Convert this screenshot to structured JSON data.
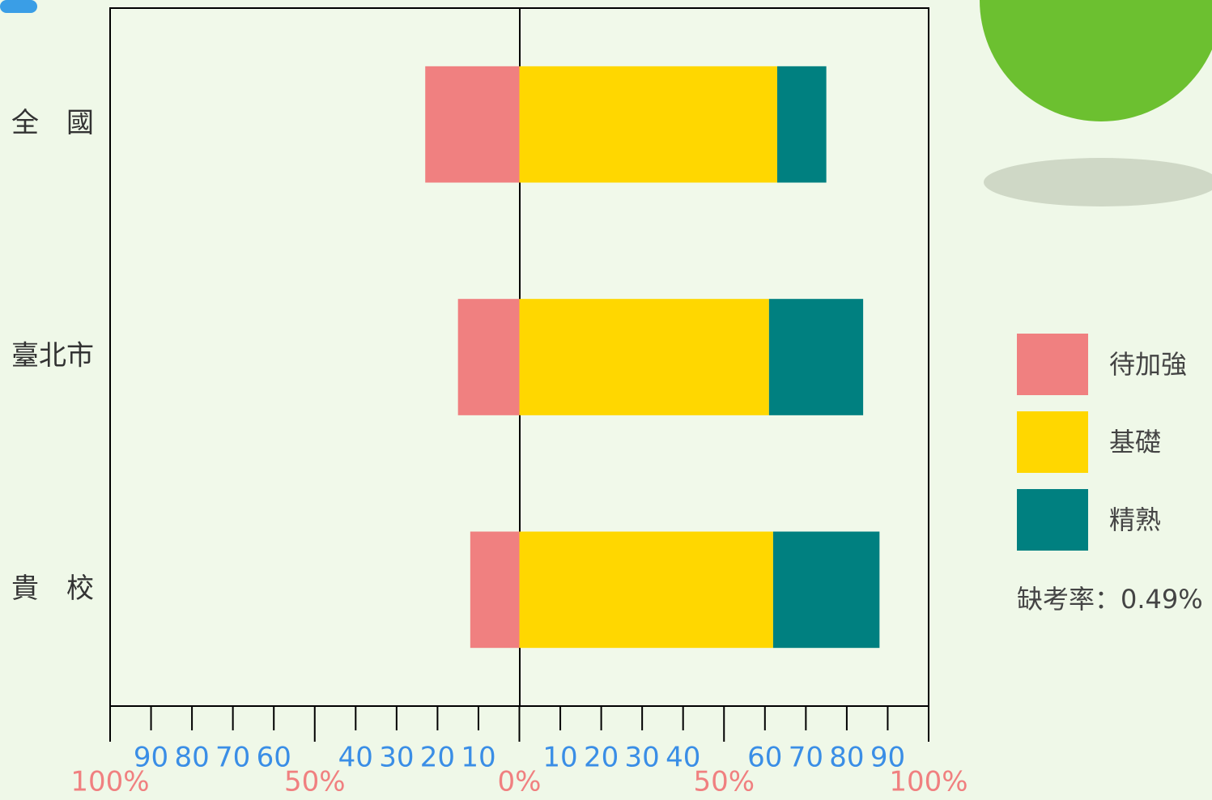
{
  "chart_data": {
    "type": "diverging_bar",
    "categories": [
      "全　國",
      "臺北市",
      "貴　校"
    ],
    "series": [
      {
        "name": "待加強",
        "color": "#f08080",
        "values": [
          23,
          15,
          12
        ]
      },
      {
        "name": "基礎",
        "color": "#ffd700",
        "values": [
          63,
          61,
          62
        ]
      },
      {
        "name": "精熟",
        "color": "#008080",
        "values": [
          12,
          23,
          26
        ]
      }
    ],
    "xlim": [
      -100,
      100
    ],
    "xticks": [
      {
        "value": -90,
        "label": "90"
      },
      {
        "value": -80,
        "label": "80"
      },
      {
        "value": -70,
        "label": "70"
      },
      {
        "value": -60,
        "label": "60"
      },
      {
        "value": -40,
        "label": "40"
      },
      {
        "value": -30,
        "label": "30"
      },
      {
        "value": -20,
        "label": "20"
      },
      {
        "value": -10,
        "label": "10"
      },
      10,
      20,
      30,
      40,
      60,
      70,
      80,
      90
    ],
    "xticks_percent": [
      {
        "value": -100,
        "label": "100%"
      },
      {
        "value": -50,
        "label": "50%"
      },
      {
        "value": 0,
        "label": "0%"
      },
      {
        "value": 50,
        "label": "50%"
      },
      {
        "value": 100,
        "label": "100%"
      }
    ],
    "annotation": "缺考率：0.49%",
    "legend": "right"
  }
}
